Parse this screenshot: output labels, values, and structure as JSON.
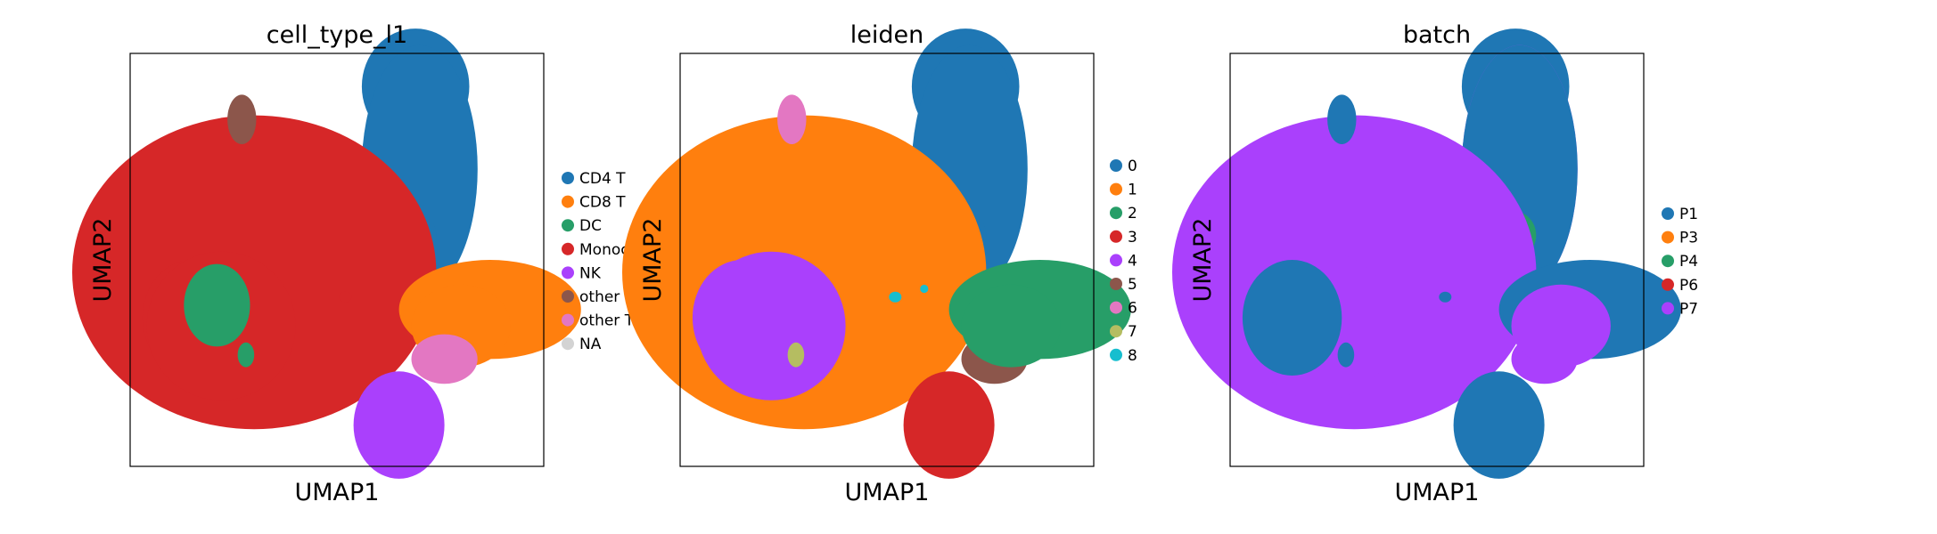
{
  "figure": {
    "xlabel": "UMAP1",
    "ylabel": "UMAP2"
  },
  "chart_data": [
    {
      "type": "scatter",
      "title": "cell_type_l1",
      "xlabel": "UMAP1",
      "ylabel": "UMAP2",
      "legend": "right",
      "ticks": "none",
      "categories": [
        "CD4 T",
        "CD8 T",
        "DC",
        "Monocytes",
        "NK",
        "other",
        "other T",
        "NA"
      ],
      "colors": [
        "#1f77b4",
        "#ff7f0e",
        "#279e68",
        "#d62728",
        "#aa40fc",
        "#8c564b",
        "#e377c2",
        "#d3d3d3"
      ]
    },
    {
      "type": "scatter",
      "title": "leiden",
      "xlabel": "UMAP1",
      "ylabel": "UMAP2",
      "legend": "right",
      "ticks": "none",
      "categories": [
        "0",
        "1",
        "2",
        "3",
        "4",
        "5",
        "6",
        "7",
        "8"
      ],
      "colors": [
        "#1f77b4",
        "#ff7f0e",
        "#279e68",
        "#d62728",
        "#aa40fc",
        "#8c564b",
        "#e377c2",
        "#b5bd61",
        "#17becf"
      ]
    },
    {
      "type": "scatter",
      "title": "batch",
      "xlabel": "UMAP1",
      "ylabel": "UMAP2",
      "legend": "right",
      "ticks": "none",
      "categories": [
        "P1",
        "P3",
        "P4",
        "P6",
        "P7"
      ],
      "colors": [
        "#1f77b4",
        "#ff7f0e",
        "#279e68",
        "#d62728",
        "#aa40fc"
      ]
    }
  ]
}
